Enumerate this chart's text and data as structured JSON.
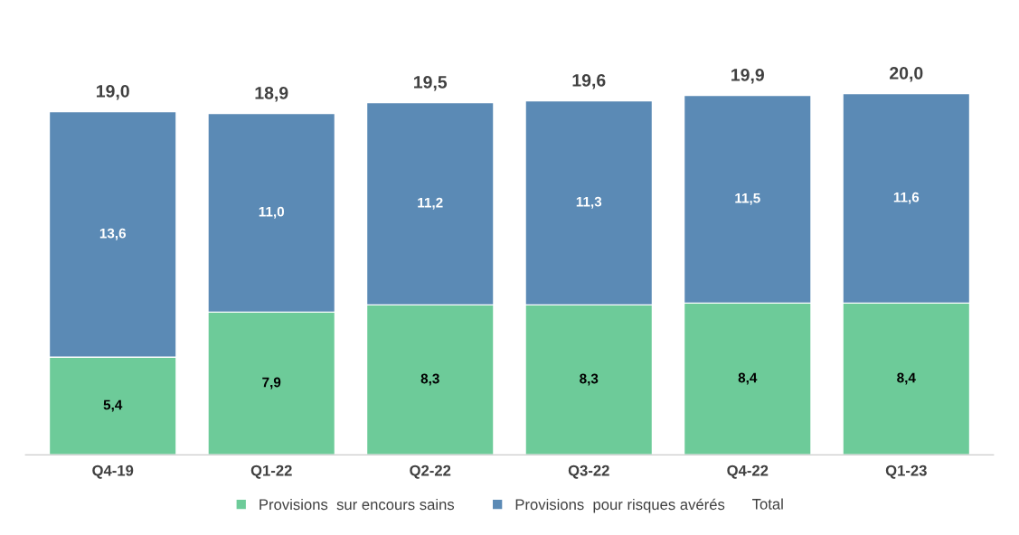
{
  "chart_data": {
    "type": "bar",
    "stacked": true,
    "categories": [
      "Q4-19",
      "Q1-22",
      "Q2-22",
      "Q3-22",
      "Q4-22",
      "Q1-23"
    ],
    "series": [
      {
        "name": "Provisions  sur encours sains",
        "color": "#6dcb99",
        "values": [
          5.4,
          7.9,
          8.3,
          8.3,
          8.4,
          8.4
        ],
        "value_labels": [
          "5,4",
          "7,9",
          "8,3",
          "8,3",
          "8,4",
          "8,4"
        ]
      },
      {
        "name": "Provisions  pour risques avérés",
        "color": "#5b8ab5",
        "values": [
          13.6,
          11.0,
          11.2,
          11.3,
          11.5,
          11.6
        ],
        "value_labels": [
          "13,6",
          "11,0",
          "11,2",
          "11,3",
          "11,5",
          "11,6"
        ]
      }
    ],
    "totals": [
      "19,0",
      "18,9",
      "19,5",
      "19,6",
      "19,9",
      "20,0"
    ],
    "annotations": [
      "Total"
    ],
    "legend": "bottom",
    "grid": false
  }
}
